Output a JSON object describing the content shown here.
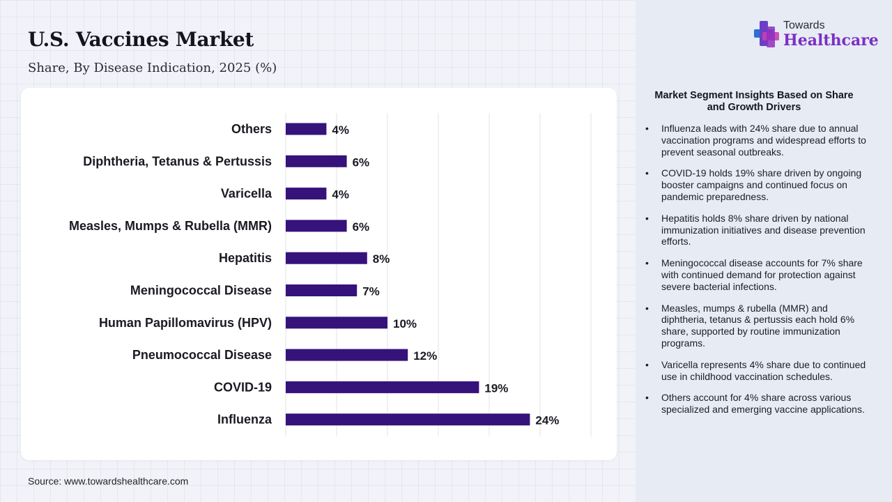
{
  "header": {
    "title": "U.S. Vaccines Market",
    "subtitle": "Share, By Disease Indication, 2025 (%)"
  },
  "chart_data": {
    "type": "bar",
    "orientation": "horizontal",
    "categories": [
      "Others",
      "Diphtheria, Tetanus & Pertussis",
      "Varicella",
      "Measles, Mumps & Rubella (MMR)",
      "Hepatitis",
      "Meningococcal Disease",
      "Human Papillomavirus (HPV)",
      "Pneumococcal Disease",
      "COVID-19",
      "Influenza"
    ],
    "values": [
      4,
      6,
      4,
      6,
      8,
      7,
      10,
      12,
      19,
      24
    ],
    "value_labels": [
      "4%",
      "6%",
      "4%",
      "6%",
      "8%",
      "7%",
      "10%",
      "12%",
      "19%",
      "24%"
    ],
    "xlim": [
      0,
      30
    ],
    "grid": true,
    "bar_color": "#35137a"
  },
  "source": "Source: www.towardshealthcare.com",
  "logo": {
    "top": "Towards",
    "bottom": "Healthcare",
    "icon": "cross-logo-icon"
  },
  "insights": {
    "title": "Market Segment Insights Based on Share and Growth Drivers",
    "items": [
      "Influenza leads with 24% share due to annual vaccination programs and widespread efforts to prevent seasonal outbreaks.",
      "COVID-19 holds 19% share driven by ongoing booster campaigns and continued focus on pandemic preparedness.",
      "Hepatitis holds 8% share driven by national immunization initiatives and disease prevention efforts.",
      "Meningococcal disease accounts for 7% share with continued demand for protection against severe bacterial infections.",
      "Measles, mumps & rubella (MMR) and diphtheria, tetanus & pertussis each hold 6% share, supported by routine immunization programs.",
      "Varicella represents 4% share due to continued use in childhood vaccination schedules.",
      "Others account for 4% share across various specialized and emerging vaccine applications."
    ]
  }
}
